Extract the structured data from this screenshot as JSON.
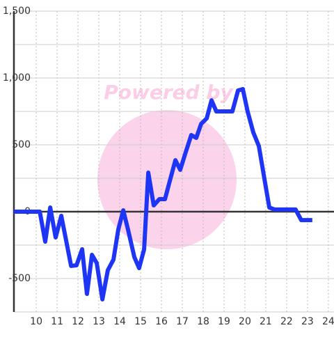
{
  "chart_data": {
    "type": "line",
    "watermark": "Powered by",
    "x": [
      8.93,
      10.17,
      10.43,
      10.67,
      10.93,
      11.2,
      11.43,
      11.67,
      11.93,
      12.2,
      12.43,
      12.67,
      12.9,
      13.17,
      13.43,
      13.7,
      13.93,
      14.17,
      14.4,
      14.7,
      14.93,
      15.17,
      15.37,
      15.63,
      15.9,
      16.17,
      16.4,
      16.67,
      16.9,
      17.17,
      17.43,
      17.67,
      17.9,
      18.17,
      18.4,
      18.63,
      18.9,
      19.17,
      19.4,
      19.67,
      19.9,
      20.13,
      20.4,
      20.67,
      20.93,
      21.17,
      21.43,
      21.67,
      21.93,
      22.2,
      22.43,
      22.7,
      22.97,
      23.23
    ],
    "series": [
      {
        "color": "#1f35f5",
        "values": [
          0,
          0,
          -224,
          31,
          -193,
          -31,
          -214,
          -406,
          -401,
          -281,
          -615,
          -323,
          -385,
          -656,
          -438,
          -359,
          -135,
          10,
          -135,
          -339,
          -422,
          -281,
          292,
          47,
          94,
          94,
          229,
          385,
          313,
          448,
          573,
          552,
          656,
          698,
          833,
          750,
          750,
          750,
          750,
          906,
          917,
          750,
          594,
          490,
          250,
          31,
          16,
          16,
          16,
          16,
          16,
          -63,
          -63,
          -63
        ]
      }
    ],
    "xlim": [
      8.93,
      24.27
    ],
    "ylim": [
      -750,
      1500
    ],
    "xticks": [
      10,
      11,
      12,
      13,
      14,
      15,
      16,
      17,
      18,
      19,
      20,
      21,
      22,
      23,
      24
    ],
    "yticks": [
      {
        "value": 1500,
        "label": "1,500"
      },
      {
        "value": 1000,
        "label": "1,000"
      },
      500,
      0,
      -500
    ],
    "yminorticks": [
      1250,
      750,
      250,
      -250,
      -750
    ],
    "grid": true
  }
}
